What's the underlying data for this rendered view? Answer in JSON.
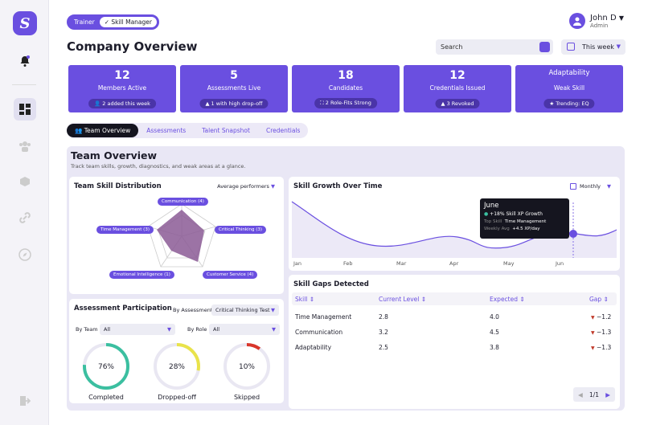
{
  "toggle": {
    "trainer": "Trainer",
    "skill_manager": "✓ Skill Manager"
  },
  "user": {
    "name": "John D",
    "role": "Admin"
  },
  "page_title": "Company Overview",
  "search": {
    "placeholder": "Search"
  },
  "period": "This week",
  "stats": [
    {
      "value": "12",
      "label": "Members Active",
      "pill": "2 added this week"
    },
    {
      "value": "5",
      "label": "Assessments Live",
      "pill": "1 with high drop-off"
    },
    {
      "value": "18",
      "label": "Candidates",
      "pill": "2 Role-Fits Strong"
    },
    {
      "value": "12",
      "label": "Credentials Issued",
      "pill": "3 Revoked"
    },
    {
      "value": "Adaptability",
      "label": "Weak Skill",
      "pill": "Trending: EQ"
    }
  ],
  "tabs": [
    "Team Overview",
    "Assessments",
    "Talent Snapshot",
    "Credentials"
  ],
  "overview": {
    "title": "Team Overview",
    "subtitle": "Track team skills, growth, diagnostics, and weak areas at a glance."
  },
  "distribution": {
    "title": "Team Skill Distribution",
    "filter": "Average performers",
    "labels": [
      "Communication (4)",
      "Critical Thinking (3)",
      "Customer Service (4)",
      "Emotional Intelligence (1)",
      "Time Management (3)"
    ]
  },
  "participation": {
    "title": "Assessment Participation",
    "by_label": "By Assessment",
    "assessment": "Critical Thinking Test",
    "team_label": "By Team",
    "team_value": "All",
    "role_label": "By Role",
    "role_value": "All",
    "gauges": [
      {
        "value": "76%",
        "label": "Completed",
        "pct": 76,
        "color": "#3bbfa0"
      },
      {
        "value": "28%",
        "label": "Dropped-off",
        "pct": 28,
        "color": "#e9e34a"
      },
      {
        "value": "10%",
        "label": "Skipped",
        "pct": 10,
        "color": "#d9362b"
      }
    ]
  },
  "growth": {
    "title": "Skill Growth Over Time",
    "period": "Monthly",
    "months": [
      "Jan",
      "Feb",
      "Mar",
      "Apr",
      "May",
      "Jun"
    ],
    "tooltip": {
      "month": "June",
      "growth": "+18% Skill XP Growth",
      "top_label": "Top Skill",
      "top_value": "Time Management",
      "avg_label": "Weekly Avg",
      "avg_value": "+4.5 XP/day"
    }
  },
  "gaps": {
    "title": "Skill Gaps Detected",
    "headers": [
      "Skill",
      "Current Level",
      "Expected",
      "Gap"
    ],
    "rows": [
      {
        "skill": "Time Management",
        "current": "2.8",
        "expected": "4.0",
        "gap": "−1.2"
      },
      {
        "skill": "Communication",
        "current": "3.2",
        "expected": "4.5",
        "gap": "−1.3"
      },
      {
        "skill": "Adaptability",
        "current": "2.5",
        "expected": "3.8",
        "gap": "−1.3"
      }
    ],
    "pagination": "1/1"
  },
  "colors": {
    "accent": "#6a4fe0"
  }
}
